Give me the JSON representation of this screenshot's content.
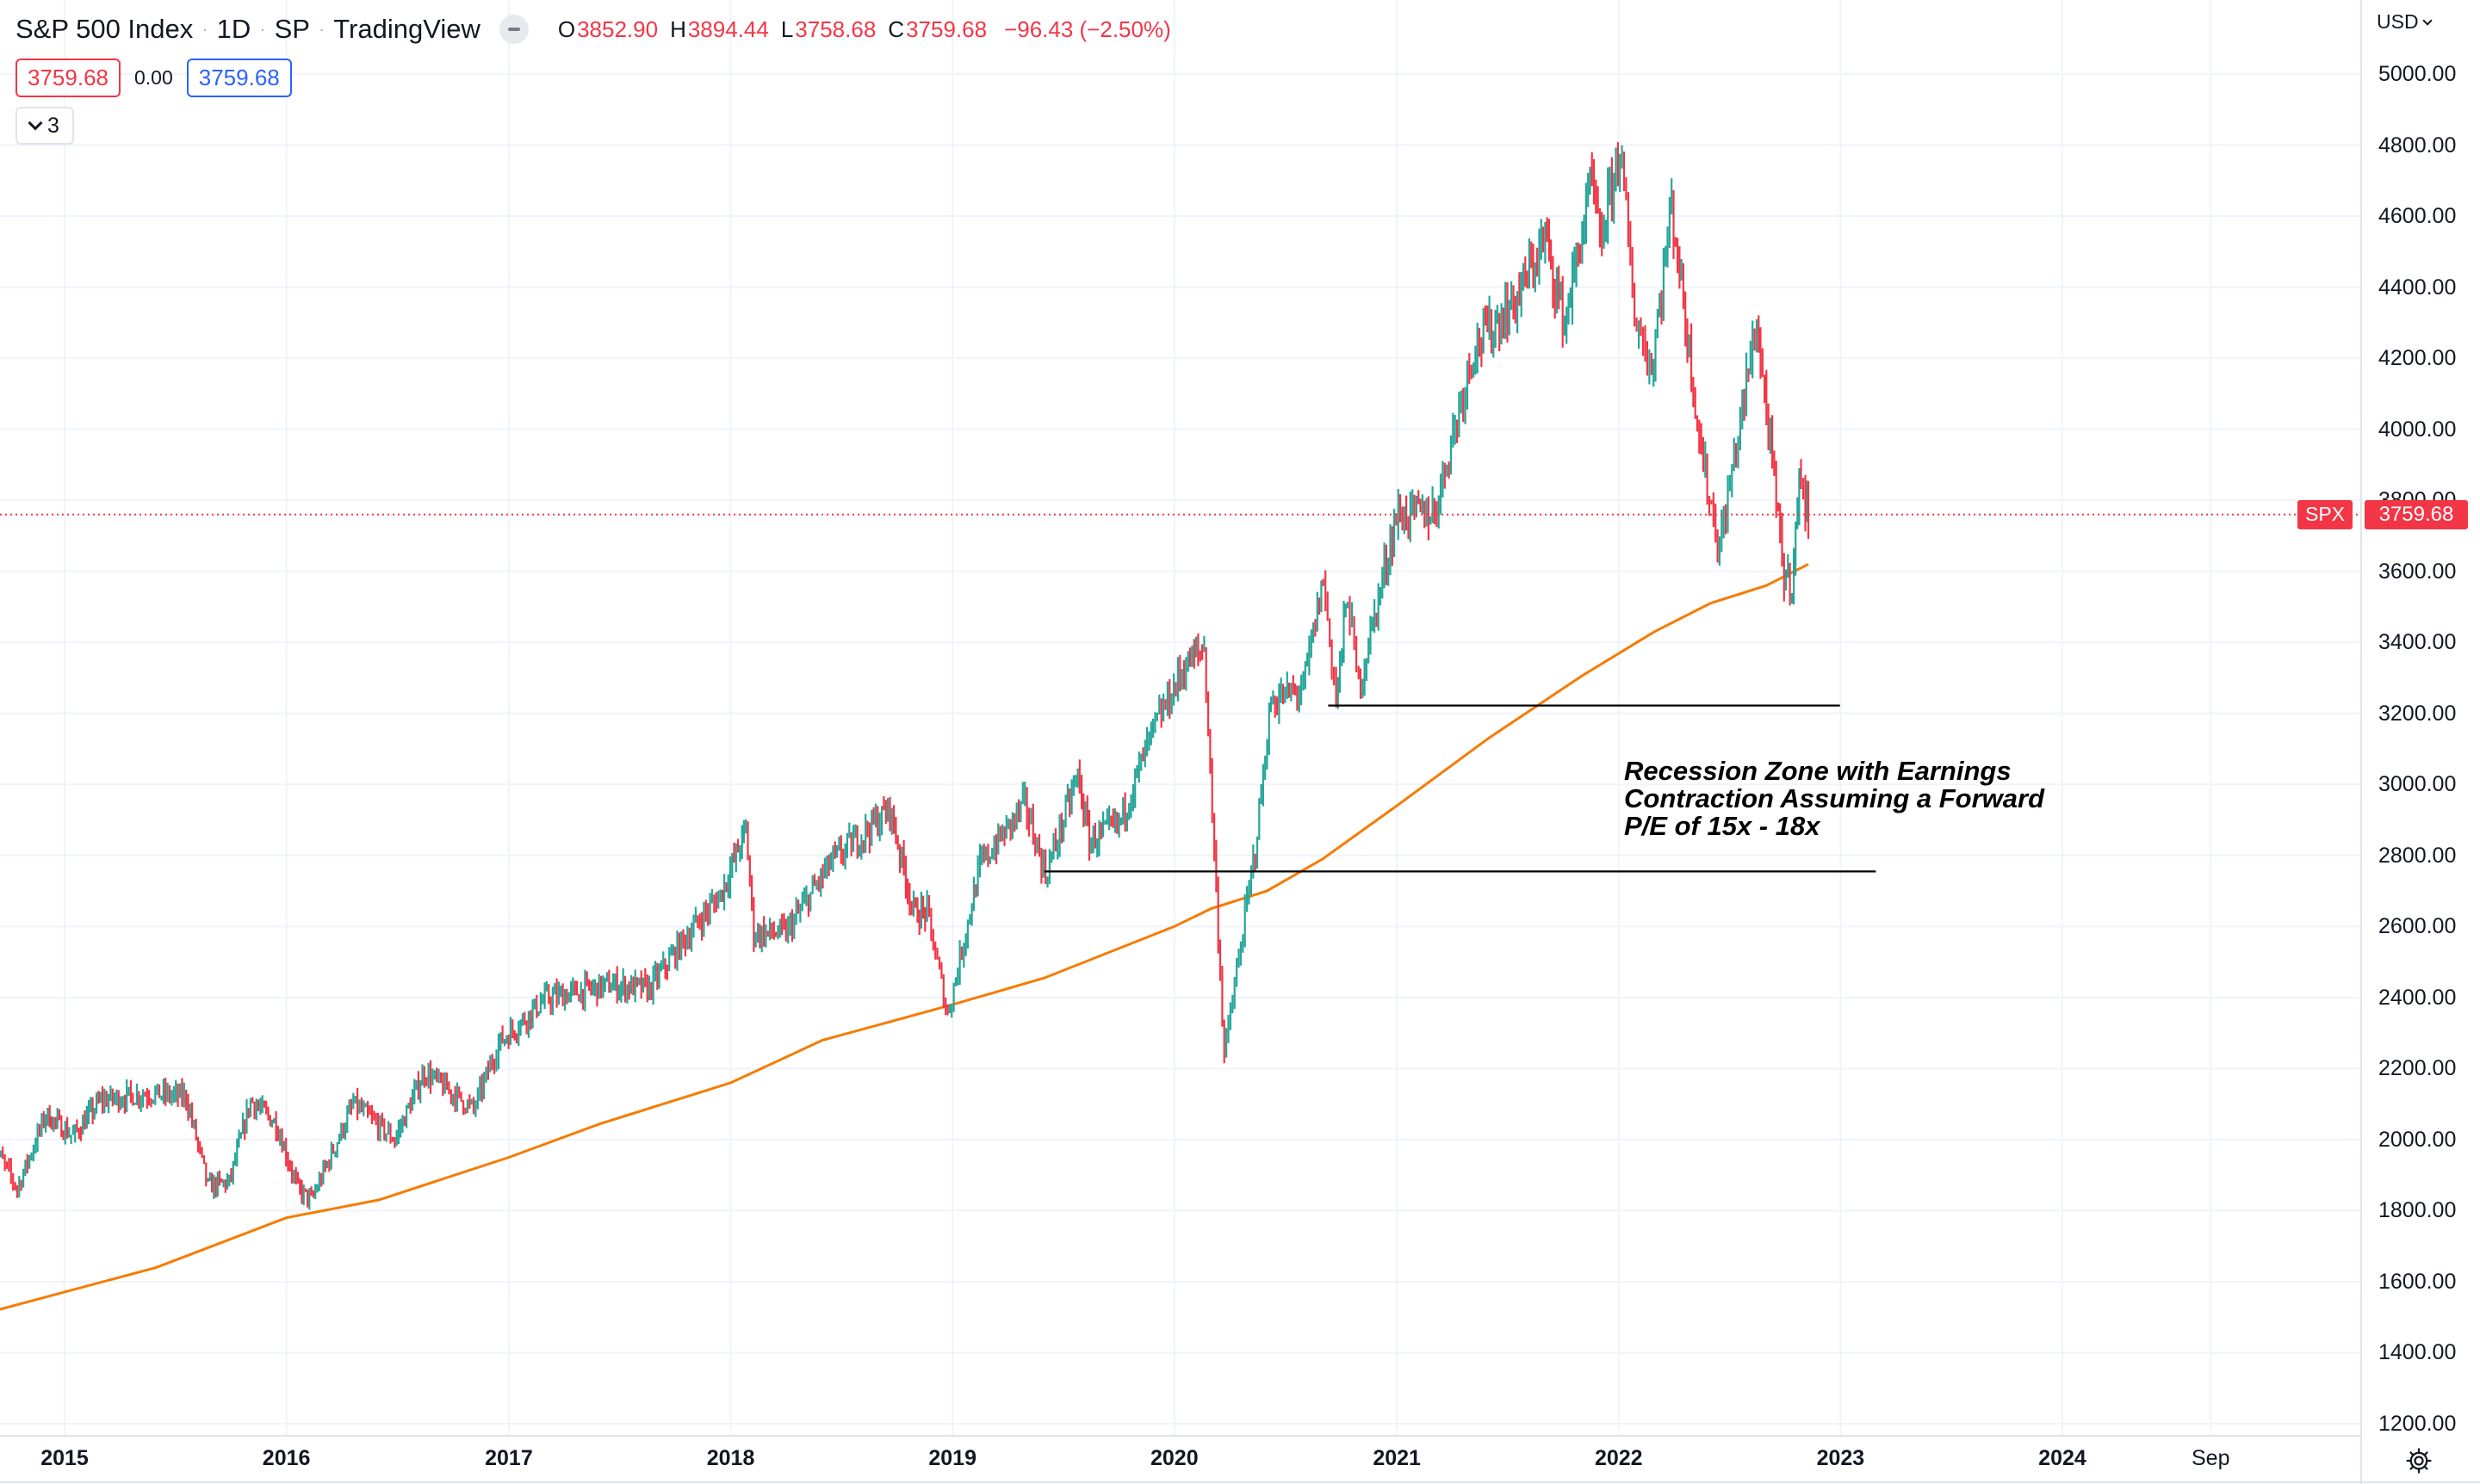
{
  "header": {
    "symbol_name": "S&P 500 Index",
    "interval": "1D",
    "exchange": "SP",
    "source": "TradingView",
    "open_key": "O",
    "open": "3852.90",
    "high_key": "H",
    "high": "3894.44",
    "low_key": "L",
    "low": "3758.68",
    "close_key": "C",
    "close": "3759.68",
    "change": "−96.43 (−2.50%)",
    "sell_price": "3759.68",
    "spread": "0.00",
    "buy_price": "3759.68",
    "indicators_count": "3"
  },
  "price_scale": {
    "currency": "USD",
    "symbol_tag": "SPX",
    "last_price_tag": "3759.68"
  },
  "annotation": {
    "line1": "Recession Zone with Earnings",
    "line2": "Contraction Assuming a Forward",
    "line3": "P/E of 15x - 18x"
  },
  "colors": {
    "up": "#26a69a",
    "down": "#f23645",
    "moving_average": "#f57c00",
    "support_lines": "#000000",
    "last_price": "#f23645",
    "buy": "#2962ff"
  },
  "chart_data": {
    "type": "line",
    "title": "S&P 500 Index · 1D · SP",
    "x_axis": {
      "ticks": [
        "2015",
        "2016",
        "2017",
        "2018",
        "2019",
        "2020",
        "2021",
        "2022",
        "2023",
        "2024",
        "Sep"
      ],
      "range": [
        "2014-09",
        "2024-11"
      ]
    },
    "y_axis": {
      "ticks": [
        "1200.00",
        "1400.00",
        "1600.00",
        "1800.00",
        "2000.00",
        "2200.00",
        "2400.00",
        "2600.00",
        "2800.00",
        "3000.00",
        "3200.00",
        "3400.00",
        "3600.00",
        "3800.00",
        "4000.00",
        "4200.00",
        "4400.00",
        "4600.00",
        "4800.00",
        "5000.00"
      ],
      "range": [
        1180,
        5080
      ],
      "position": "right"
    },
    "grid": true,
    "series": [
      {
        "name": "S&P 500 Index",
        "style": "candles",
        "points": [
          [
            "2014-09-01",
            2000
          ],
          [
            "2014-10-15",
            1862
          ],
          [
            "2014-12-01",
            2070
          ],
          [
            "2015-01-15",
            2010
          ],
          [
            "2015-03-01",
            2110
          ],
          [
            "2015-05-20",
            2130
          ],
          [
            "2015-07-20",
            2120
          ],
          [
            "2015-08-25",
            1868
          ],
          [
            "2015-09-29",
            1880
          ],
          [
            "2015-11-03",
            2110
          ],
          [
            "2015-12-15",
            2045
          ],
          [
            "2016-01-20",
            1860
          ],
          [
            "2016-02-11",
            1829
          ],
          [
            "2016-04-20",
            2100
          ],
          [
            "2016-06-27",
            2000
          ],
          [
            "2016-08-15",
            2190
          ],
          [
            "2016-11-04",
            2085
          ],
          [
            "2016-12-15",
            2270
          ],
          [
            "2017-03-01",
            2395
          ],
          [
            "2017-06-15",
            2435
          ],
          [
            "2017-08-20",
            2425
          ],
          [
            "2017-10-15",
            2560
          ],
          [
            "2017-12-15",
            2690
          ],
          [
            "2018-01-26",
            2872
          ],
          [
            "2018-02-08",
            2581
          ],
          [
            "2018-04-02",
            2582
          ],
          [
            "2018-06-15",
            2780
          ],
          [
            "2018-09-20",
            2930
          ],
          [
            "2018-10-29",
            2640
          ],
          [
            "2018-11-20",
            2640
          ],
          [
            "2018-12-24",
            2351
          ],
          [
            "2019-02-15",
            2770
          ],
          [
            "2019-04-30",
            2945
          ],
          [
            "2019-06-03",
            2745
          ],
          [
            "2019-07-26",
            3025
          ],
          [
            "2019-08-14",
            2840
          ],
          [
            "2019-10-02",
            2888
          ],
          [
            "2019-11-27",
            3150
          ],
          [
            "2020-01-17",
            3330
          ],
          [
            "2020-02-19",
            3386
          ],
          [
            "2020-03-23",
            2237
          ],
          [
            "2020-05-13",
            2820
          ],
          [
            "2020-06-08",
            3232
          ],
          [
            "2020-07-31",
            3270
          ],
          [
            "2020-09-02",
            3580
          ],
          [
            "2020-09-23",
            3237
          ],
          [
            "2020-10-12",
            3535
          ],
          [
            "2020-10-30",
            3270
          ],
          [
            "2020-12-31",
            3756
          ],
          [
            "2021-03-04",
            3768
          ],
          [
            "2021-05-07",
            4232
          ],
          [
            "2021-07-15",
            4360
          ],
          [
            "2021-09-02",
            4537
          ],
          [
            "2021-10-04",
            4300
          ],
          [
            "2021-11-18",
            4700
          ],
          [
            "2021-12-01",
            4513
          ],
          [
            "2022-01-03",
            4796
          ],
          [
            "2022-01-27",
            4326
          ],
          [
            "2022-02-24",
            4170
          ],
          [
            "2022-03-29",
            4631
          ],
          [
            "2022-05-20",
            3900
          ],
          [
            "2022-06-16",
            3666
          ],
          [
            "2022-08-16",
            4305
          ],
          [
            "2022-09-30",
            3585
          ],
          [
            "2022-10-13",
            3577
          ],
          [
            "2022-10-28",
            3901
          ],
          [
            "2022-11-04",
            3770
          ],
          [
            "2022-11-09",
            3759.68
          ]
        ]
      },
      {
        "name": "MA",
        "style": "line",
        "points": [
          [
            "2014-09-01",
            1515
          ],
          [
            "2015-06-01",
            1640
          ],
          [
            "2016-01-01",
            1780
          ],
          [
            "2016-06-01",
            1830
          ],
          [
            "2017-01-01",
            1950
          ],
          [
            "2017-06-01",
            2045
          ],
          [
            "2018-01-01",
            2160
          ],
          [
            "2018-06-01",
            2280
          ],
          [
            "2019-01-01",
            2380
          ],
          [
            "2019-06-01",
            2455
          ],
          [
            "2020-01-01",
            2600
          ],
          [
            "2020-03-01",
            2650
          ],
          [
            "2020-06-01",
            2700
          ],
          [
            "2020-09-01",
            2790
          ],
          [
            "2021-01-01",
            2940
          ],
          [
            "2021-06-01",
            3130
          ],
          [
            "2021-11-01",
            3305
          ],
          [
            "2022-03-01",
            3430
          ],
          [
            "2022-06-01",
            3510
          ],
          [
            "2022-09-01",
            3560
          ],
          [
            "2022-11-09",
            3620
          ]
        ]
      },
      {
        "name": "Level 3200",
        "style": "hline",
        "points": [
          [
            "2020-09-10",
            3222
          ],
          [
            "2022-12-31",
            3222
          ]
        ]
      },
      {
        "name": "Level 2750",
        "style": "hline",
        "points": [
          [
            "2019-06-01",
            2755
          ],
          [
            "2023-02-28",
            2755
          ]
        ]
      }
    ]
  }
}
